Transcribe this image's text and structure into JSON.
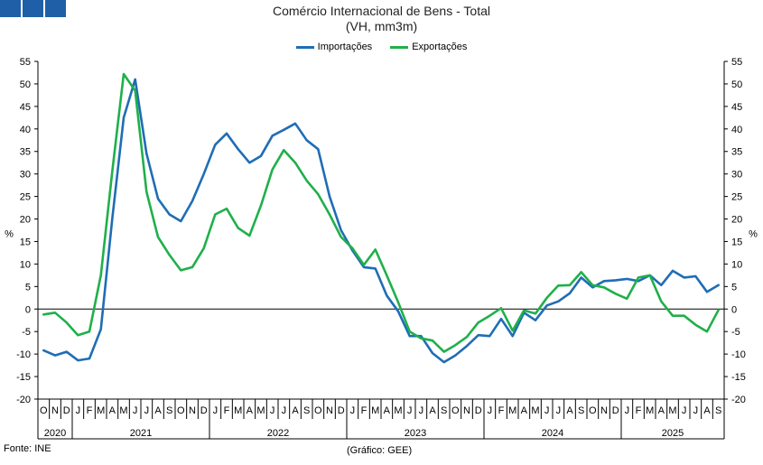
{
  "header": {
    "title_line1": "Comércio Internacional de Bens - Total",
    "title_line2": "(VH, mm3m)"
  },
  "footer": {
    "source": "Fonte: INE",
    "credit": "(Gráfico: GEE)"
  },
  "colors": {
    "importacoes": "#1f6db5",
    "exportacoes": "#1fb04a",
    "logo": "#1f5fa8"
  },
  "chart_data": {
    "type": "line",
    "title": "Comércio Internacional de Bens - Total",
    "subtitle": "(VH, mm3m)",
    "ylabel_left": "%",
    "ylabel_right": "%",
    "ylim": [
      -20,
      55
    ],
    "yticks": [
      -20,
      -15,
      -10,
      -5,
      0,
      5,
      10,
      15,
      20,
      25,
      30,
      35,
      40,
      45,
      50,
      55
    ],
    "grid": false,
    "legend": "top-center",
    "month_labels": [
      "O",
      "N",
      "D",
      "J",
      "F",
      "M",
      "A",
      "M",
      "J",
      "J",
      "A",
      "S",
      "O",
      "N",
      "D",
      "J",
      "F",
      "M",
      "A",
      "M",
      "J",
      "J",
      "A",
      "S",
      "O",
      "N",
      "D",
      "J",
      "F",
      "M",
      "A",
      "M",
      "J",
      "J",
      "A",
      "S",
      "O",
      "N",
      "D",
      "J",
      "F",
      "M",
      "A",
      "M",
      "J",
      "J",
      "A",
      "S",
      "O",
      "N",
      "D",
      "J",
      "F",
      "M",
      "A",
      "M",
      "J",
      "J",
      "A",
      "S"
    ],
    "years": [
      {
        "label": "2020",
        "start": 0,
        "end": 2
      },
      {
        "label": "2021",
        "start": 3,
        "end": 14
      },
      {
        "label": "2022",
        "start": 15,
        "end": 26
      },
      {
        "label": "2023",
        "start": 27,
        "end": 38
      },
      {
        "label": "2024",
        "start": 39,
        "end": 50
      },
      {
        "label": "2025",
        "start": 51,
        "end": 59
      }
    ],
    "series": [
      {
        "name": "Importações",
        "color": "#1f6db5",
        "values": [
          -9.2,
          -10.3,
          -9.5,
          -11.4,
          -11.0,
          -4.5,
          20.0,
          42.5,
          51.0,
          34.5,
          24.5,
          21.0,
          19.5,
          24.0,
          30.0,
          36.5,
          39.0,
          35.5,
          32.5,
          34.0,
          38.5,
          39.8,
          41.2,
          37.5,
          35.5,
          25.0,
          17.5,
          13.0,
          9.3,
          9.0,
          3.0,
          -0.5,
          -6.0,
          -6.0,
          -9.8,
          -11.8,
          -10.3,
          -8.2,
          -5.8,
          -6.0,
          -2.2,
          -6.0,
          -0.8,
          -2.5,
          0.8,
          1.7,
          3.5,
          7.0,
          4.8,
          6.2,
          6.4,
          6.7,
          6.2,
          7.5,
          5.3,
          8.5,
          7.0,
          7.3,
          3.8,
          5.3
        ]
      },
      {
        "name": "Exportações",
        "color": "#1fb04a",
        "values": [
          -1.2,
          -0.8,
          -3.0,
          -5.8,
          -5.0,
          7.5,
          30.5,
          52.2,
          48.5,
          26.0,
          16.0,
          12.0,
          8.6,
          9.3,
          13.5,
          21.0,
          22.3,
          18.0,
          16.3,
          23.0,
          31.0,
          35.3,
          32.5,
          28.5,
          25.5,
          21.0,
          16.0,
          13.5,
          9.8,
          13.2,
          7.5,
          1.5,
          -5.0,
          -6.5,
          -7.0,
          -9.5,
          -8.0,
          -6.2,
          -3.0,
          -1.5,
          0.2,
          -4.8,
          -0.3,
          -1.0,
          2.5,
          5.2,
          5.3,
          8.2,
          5.3,
          4.8,
          3.4,
          2.3,
          7.0,
          7.5,
          1.7,
          -1.5,
          -1.5,
          -3.5,
          -5.0,
          -0.2
        ]
      }
    ]
  }
}
